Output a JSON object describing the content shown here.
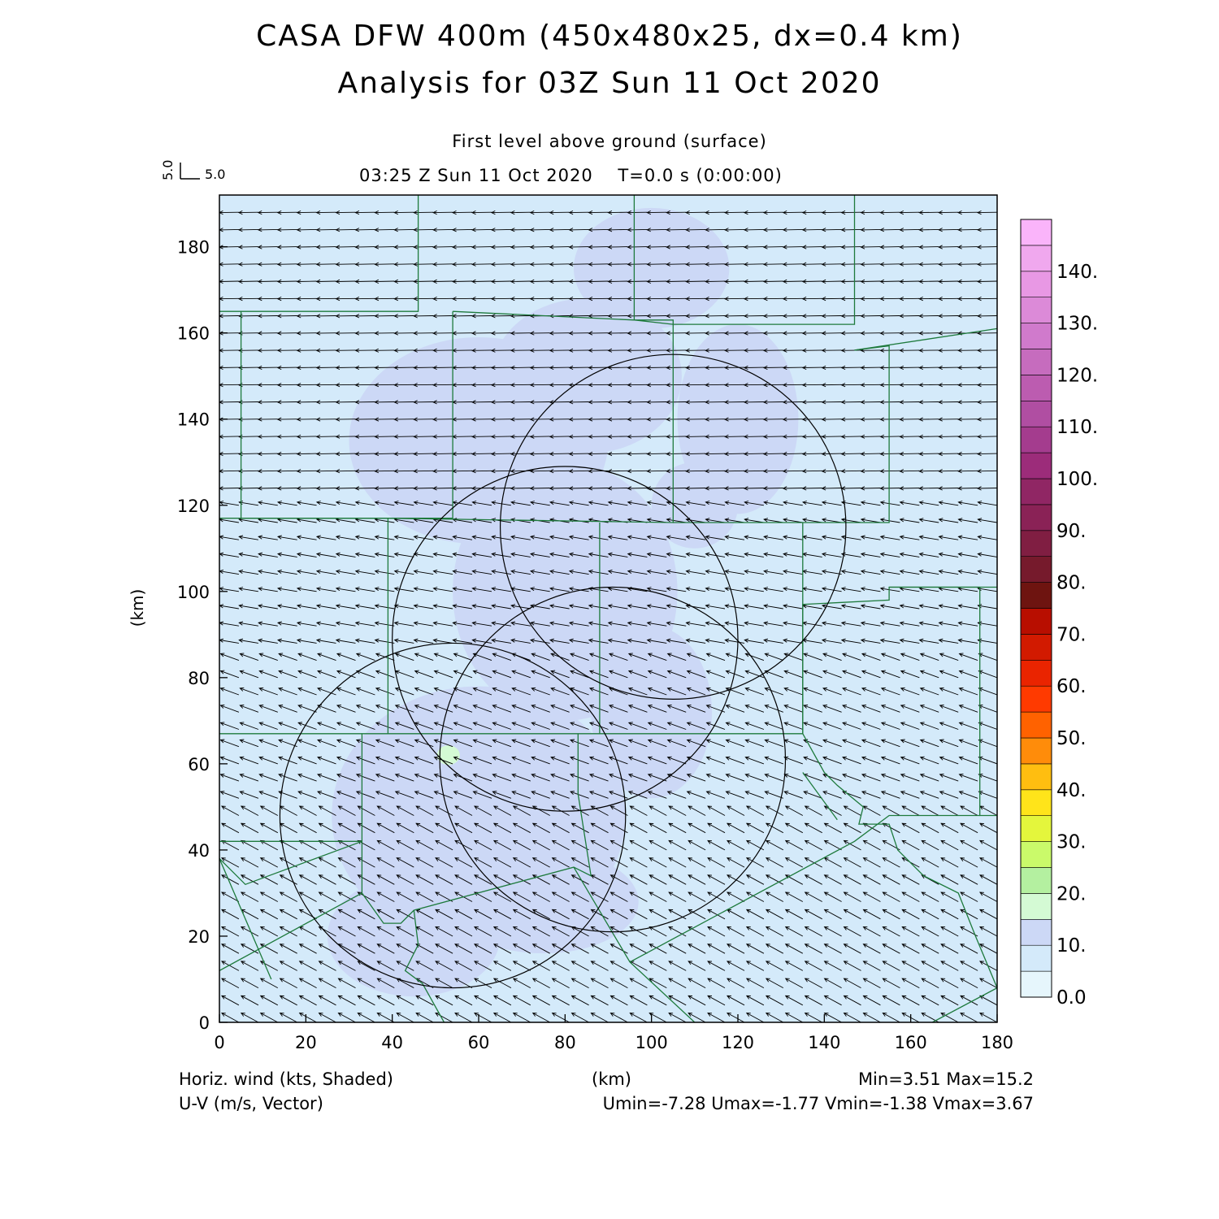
{
  "header": {
    "title": "CASA DFW 400m (450x480x25, dx=0.4 km)",
    "subtitle": "Analysis for 03Z Sun 11 Oct 2020",
    "level": "First level above ground (surface)",
    "time": "03:25 Z Sun 11 Oct 2020    T=0.0 s (0:00:00)",
    "ref_vector_u": "5.0",
    "ref_vector_v": "5.0"
  },
  "chart_data": {
    "type": "heatmap",
    "xlabel": "(km)",
    "ylabel": "(km)",
    "xlim": [
      0,
      180
    ],
    "ylim": [
      0,
      192
    ],
    "x_ticks": [
      0,
      20,
      40,
      60,
      80,
      100,
      120,
      140,
      160,
      180
    ],
    "y_ticks": [
      0,
      20,
      40,
      60,
      80,
      100,
      120,
      140,
      160,
      180
    ],
    "colorbar": {
      "labels": [
        "0.0",
        "10.",
        "20.",
        "30.",
        "40.",
        "50.",
        "60.",
        "70.",
        "80.",
        "90.",
        "100.",
        "110.",
        "120.",
        "130.",
        "140."
      ],
      "levels": [
        0,
        5,
        10,
        15,
        20,
        25,
        30,
        35,
        40,
        45,
        50,
        55,
        60,
        65,
        70,
        75,
        80,
        85,
        90,
        95,
        100,
        105,
        110,
        115,
        120,
        125,
        130,
        135,
        140,
        145
      ],
      "colors": [
        "#e6f6fc",
        "#d4eafa",
        "#ccd8f6",
        "#d4fad4",
        "#b4f0a0",
        "#cafa6a",
        "#e4f63c",
        "#ffe41a",
        "#ffbe10",
        "#ff8c0a",
        "#ff6200",
        "#ff3a00",
        "#ea2400",
        "#d21a00",
        "#b80e00",
        "#6e1410",
        "#761a2c",
        "#801e42",
        "#8a2256",
        "#902664",
        "#9c2c7a",
        "#a43c8e",
        "#b04ea2",
        "#bc5cb0",
        "#c66cbe",
        "#d07acc",
        "#dc8ad8",
        "#e898e4",
        "#f0a8ee",
        "#fab4fa"
      ]
    },
    "field": "Horizontal wind speed (kts), shaded",
    "shaded_range": {
      "min": 3.51,
      "max": 15.2
    },
    "vectors": {
      "u_range": [
        -7.28,
        -1.77
      ],
      "v_range": [
        -1.38,
        3.67
      ],
      "note": "Wind from east in north half, from southeast in south half"
    },
    "range_rings": [
      {
        "cx": 105,
        "cy": 115,
        "r": 40
      },
      {
        "cx": 80,
        "cy": 89,
        "r": 40
      },
      {
        "cx": 91,
        "cy": 61,
        "r": 40
      },
      {
        "cx": 54,
        "cy": 48,
        "r": 40
      }
    ]
  },
  "footer": {
    "left1": "Horiz. wind (kts, Shaded)",
    "left2": "U-V (m/s, Vector)",
    "center": "(km)",
    "right1": "Min=3.51 Max=15.2",
    "right2": "Umin=-7.28 Umax=-1.77 Vmin=-1.38 Vmax=3.67"
  },
  "colors": {
    "background_field": "#d4eafa",
    "stronger_wind": "#ccd8f6",
    "max_spot": "#d4fad4",
    "county_lines": "#1e7a3c",
    "rings": "#000000"
  }
}
